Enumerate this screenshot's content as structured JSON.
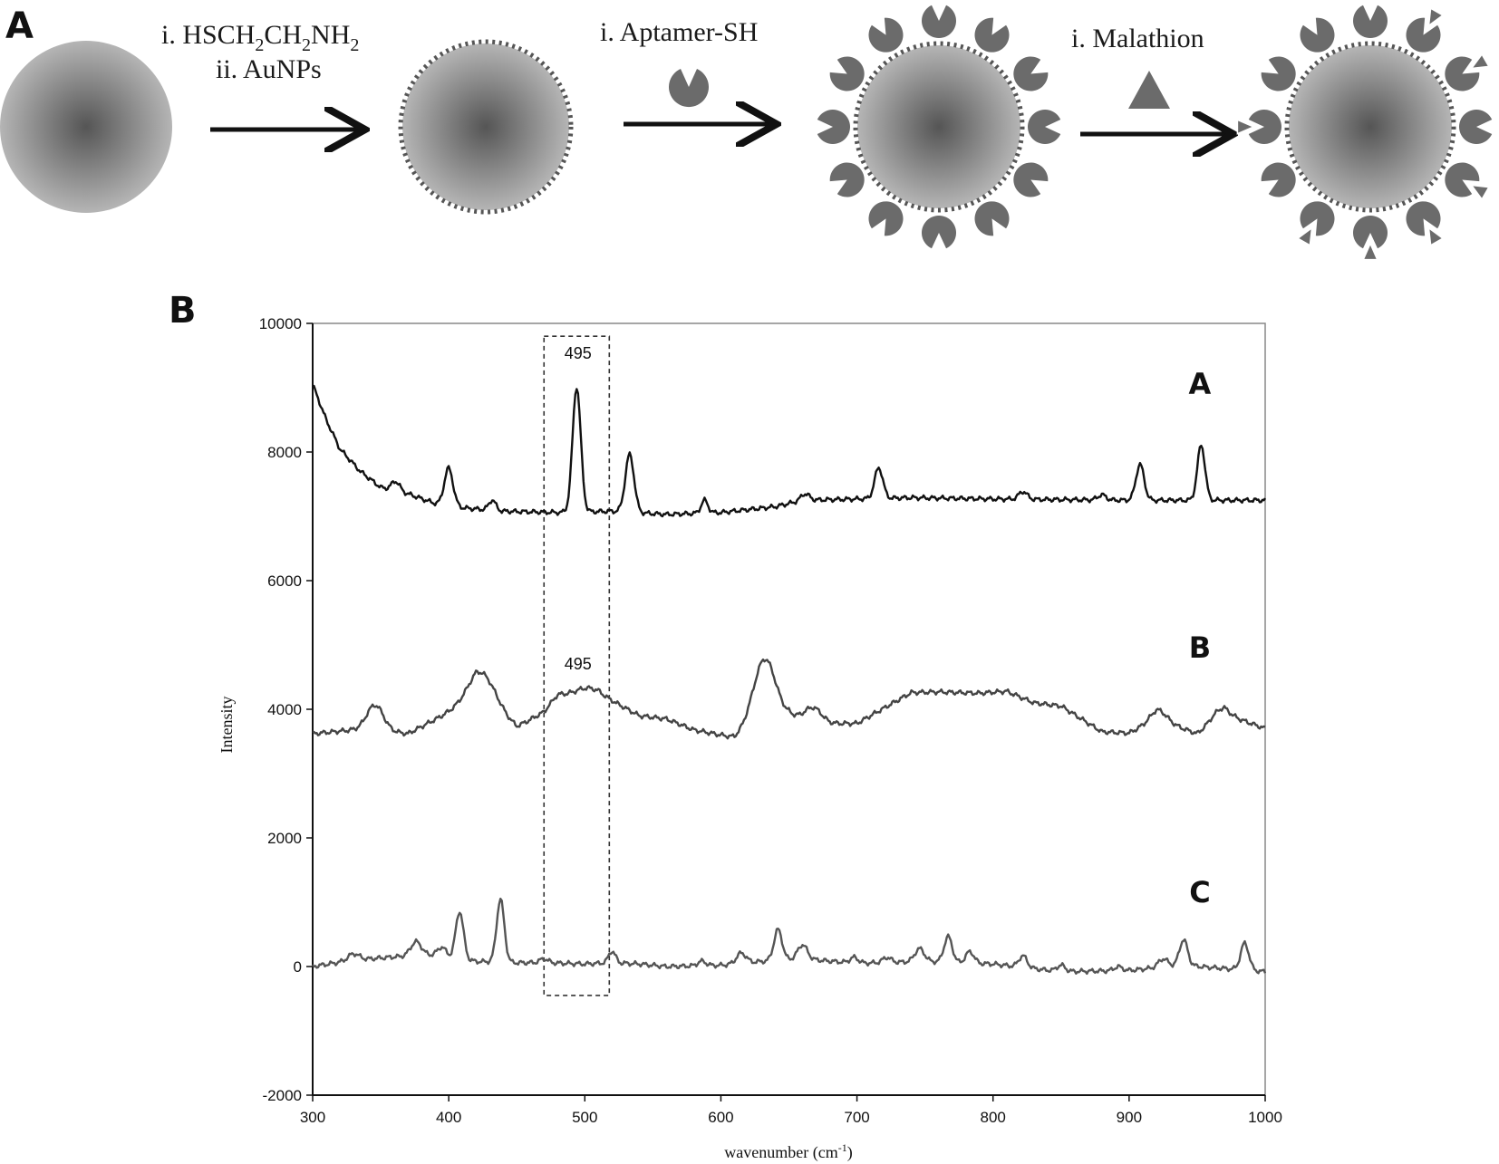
{
  "figure": {
    "panel_a_letter": "A",
    "panel_b_letter": "B",
    "scheme": {
      "step1_line1": "i. HSCH",
      "step1_line1_sub1": "2",
      "step1_line1_mid": "CH",
      "step1_line1_sub2": "2",
      "step1_line1_end": "NH",
      "step1_line1_sub3": "2",
      "step1_line2": "ii. AuNPs",
      "step2": "i. Aptamer-SH",
      "step3": "i. Malathion",
      "colors": {
        "particle_center": "#555555",
        "particle_edge": "#b5b5b5",
        "aptamer": "#6b6b6b",
        "arrow": "#111111"
      }
    }
  },
  "chart_data": {
    "type": "line",
    "xlabel": "wavenumber (cm",
    "xlabel_sup": "-1",
    "xlabel_close": ")",
    "ylabel": "Intensity",
    "xlim": [
      300,
      1000
    ],
    "ylim": [
      -2000,
      10000
    ],
    "x_ticks": [
      300,
      400,
      500,
      600,
      700,
      800,
      900,
      1000
    ],
    "y_ticks": [
      -2000,
      0,
      2000,
      4000,
      6000,
      8000,
      10000
    ],
    "grid": false,
    "highlight_box": {
      "x_range": [
        470,
        518
      ],
      "y_range": [
        -450,
        9800
      ]
    },
    "annotations": [
      {
        "text": "495",
        "x": 495,
        "y": 9450
      },
      {
        "text": "495",
        "x": 495,
        "y": 4620
      }
    ],
    "series_labels": [
      {
        "name": "A",
        "x": 952,
        "y": 8900
      },
      {
        "name": "B",
        "x": 952,
        "y": 4800
      },
      {
        "name": "C",
        "x": 952,
        "y": 1000
      }
    ],
    "series": [
      {
        "name": "A",
        "color": "#111111",
        "baseline": [
          [
            300,
            9050
          ],
          [
            310,
            8500
          ],
          [
            320,
            8050
          ],
          [
            335,
            7700
          ],
          [
            350,
            7450
          ],
          [
            370,
            7350
          ],
          [
            390,
            7200
          ],
          [
            400,
            7150
          ],
          [
            440,
            7080
          ],
          [
            480,
            7060
          ],
          [
            520,
            7080
          ],
          [
            560,
            7030
          ],
          [
            600,
            7060
          ],
          [
            640,
            7150
          ],
          [
            660,
            7250
          ],
          [
            700,
            7270
          ],
          [
            740,
            7290
          ],
          [
            800,
            7270
          ],
          [
            850,
            7260
          ],
          [
            900,
            7250
          ],
          [
            950,
            7250
          ],
          [
            1000,
            7250
          ]
        ],
        "peaks": [
          [
            361,
            150,
            3
          ],
          [
            400,
            600,
            3.2
          ],
          [
            432,
            160,
            2.5
          ],
          [
            494,
            1950,
            3
          ],
          [
            533,
            900,
            3.2
          ],
          [
            588,
            200,
            2.5
          ],
          [
            662,
            100,
            3
          ],
          [
            716,
            480,
            3
          ],
          [
            822,
            120,
            3
          ],
          [
            880,
            80,
            3
          ],
          [
            908,
            560,
            3
          ],
          [
            953,
            860,
            2.8
          ]
        ],
        "points": [
          [
            300,
            9050
          ],
          [
            310,
            8500
          ],
          [
            320,
            8050
          ],
          [
            335,
            7700
          ],
          [
            350,
            7450
          ],
          [
            361,
            7500
          ],
          [
            370,
            7350
          ],
          [
            390,
            7250
          ],
          [
            400,
            7750
          ],
          [
            410,
            7180
          ],
          [
            432,
            7240
          ],
          [
            460,
            7080
          ],
          [
            480,
            7060
          ],
          [
            494,
            9050
          ],
          [
            505,
            7100
          ],
          [
            520,
            7080
          ],
          [
            533,
            7960
          ],
          [
            545,
            7080
          ],
          [
            560,
            7030
          ],
          [
            588,
            7250
          ],
          [
            600,
            7060
          ],
          [
            640,
            7150
          ],
          [
            662,
            7350
          ],
          [
            700,
            7270
          ],
          [
            716,
            7750
          ],
          [
            740,
            7290
          ],
          [
            800,
            7270
          ],
          [
            822,
            7380
          ],
          [
            850,
            7260
          ],
          [
            880,
            7330
          ],
          [
            908,
            7810
          ],
          [
            930,
            7250
          ],
          [
            953,
            8110
          ],
          [
            970,
            7250
          ],
          [
            1000,
            7250
          ]
        ]
      },
      {
        "name": "B",
        "color": "#444444",
        "baseline": [
          [
            300,
            3620
          ],
          [
            340,
            3700
          ],
          [
            370,
            3620
          ],
          [
            400,
            3950
          ],
          [
            420,
            4150
          ],
          [
            450,
            3720
          ],
          [
            470,
            3960
          ],
          [
            480,
            4230
          ],
          [
            495,
            4250
          ],
          [
            510,
            4250
          ],
          [
            540,
            3900
          ],
          [
            560,
            3850
          ],
          [
            580,
            3680
          ],
          [
            610,
            3560
          ],
          [
            620,
            3700
          ],
          [
            650,
            3900
          ],
          [
            680,
            3780
          ],
          [
            700,
            3780
          ],
          [
            740,
            4260
          ],
          [
            760,
            4270
          ],
          [
            790,
            4250
          ],
          [
            810,
            4280
          ],
          [
            830,
            4100
          ],
          [
            850,
            4050
          ],
          [
            880,
            3650
          ],
          [
            900,
            3630
          ],
          [
            920,
            3850
          ],
          [
            950,
            3620
          ],
          [
            970,
            3930
          ],
          [
            1000,
            3700
          ]
        ],
        "peaks": [
          [
            346,
            380,
            6
          ],
          [
            425,
            480,
            10
          ],
          [
            502,
            80,
            7
          ],
          [
            632,
            1000,
            8
          ],
          [
            668,
            200,
            6
          ],
          [
            922,
            150,
            6
          ],
          [
            966,
            120,
            6
          ]
        ],
        "points": [
          [
            300,
            3620
          ],
          [
            346,
            4050
          ],
          [
            370,
            3620
          ],
          [
            425,
            4650
          ],
          [
            450,
            3720
          ],
          [
            495,
            4250
          ],
          [
            510,
            4300
          ],
          [
            540,
            3900
          ],
          [
            580,
            3680
          ],
          [
            610,
            3560
          ],
          [
            632,
            4820
          ],
          [
            650,
            3900
          ],
          [
            668,
            4060
          ],
          [
            700,
            3780
          ],
          [
            740,
            4260
          ],
          [
            810,
            4280
          ],
          [
            850,
            4050
          ],
          [
            900,
            3630
          ],
          [
            922,
            3980
          ],
          [
            950,
            3620
          ],
          [
            966,
            4040
          ],
          [
            1000,
            3700
          ]
        ]
      },
      {
        "name": "C",
        "color": "#555555",
        "baseline": [
          [
            300,
            0
          ],
          [
            330,
            100
          ],
          [
            360,
            150
          ],
          [
            390,
            180
          ],
          [
            420,
            80
          ],
          [
            450,
            60
          ],
          [
            470,
            60
          ],
          [
            500,
            40
          ],
          [
            520,
            60
          ],
          [
            540,
            40
          ],
          [
            560,
            0
          ],
          [
            600,
            20
          ],
          [
            630,
            80
          ],
          [
            660,
            120
          ],
          [
            700,
            50
          ],
          [
            750,
            80
          ],
          [
            800,
            40
          ],
          [
            850,
            -80
          ],
          [
            900,
            -60
          ],
          [
            940,
            20
          ],
          [
            970,
            -30
          ],
          [
            1000,
            -80
          ]
        ],
        "peaks": [
          [
            330,
            100,
            4
          ],
          [
            376,
            220,
            4
          ],
          [
            395,
            140,
            3
          ],
          [
            408,
            740,
            2.8
          ],
          [
            438,
            980,
            2.8
          ],
          [
            470,
            60,
            3
          ],
          [
            520,
            180,
            2.5
          ],
          [
            586,
            70,
            3
          ],
          [
            615,
            160,
            3.5
          ],
          [
            642,
            480,
            3
          ],
          [
            660,
            220,
            3.5
          ],
          [
            698,
            90,
            3
          ],
          [
            722,
            80,
            3
          ],
          [
            746,
            200,
            3.5
          ],
          [
            767,
            400,
            3
          ],
          [
            783,
            180,
            3
          ],
          [
            822,
            180,
            3
          ],
          [
            850,
            100,
            3
          ],
          [
            892,
            60,
            3
          ],
          [
            925,
            130,
            3.5
          ],
          [
            940,
            400,
            3
          ],
          [
            985,
            420,
            3
          ]
        ],
        "points": [
          [
            300,
            0
          ],
          [
            330,
            200
          ],
          [
            376,
            370
          ],
          [
            395,
            320
          ],
          [
            408,
            820
          ],
          [
            420,
            80
          ],
          [
            438,
            1060
          ],
          [
            455,
            60
          ],
          [
            470,
            120
          ],
          [
            500,
            40
          ],
          [
            520,
            240
          ],
          [
            540,
            40
          ],
          [
            560,
            0
          ],
          [
            586,
            90
          ],
          [
            615,
            240
          ],
          [
            630,
            80
          ],
          [
            642,
            600
          ],
          [
            660,
            340
          ],
          [
            698,
            140
          ],
          [
            722,
            130
          ],
          [
            746,
            280
          ],
          [
            767,
            480
          ],
          [
            783,
            220
          ],
          [
            822,
            220
          ],
          [
            850,
            20
          ],
          [
            892,
            0
          ],
          [
            925,
            150
          ],
          [
            940,
            420
          ],
          [
            970,
            -30
          ],
          [
            985,
            400
          ],
          [
            1000,
            -80
          ]
        ]
      }
    ]
  }
}
